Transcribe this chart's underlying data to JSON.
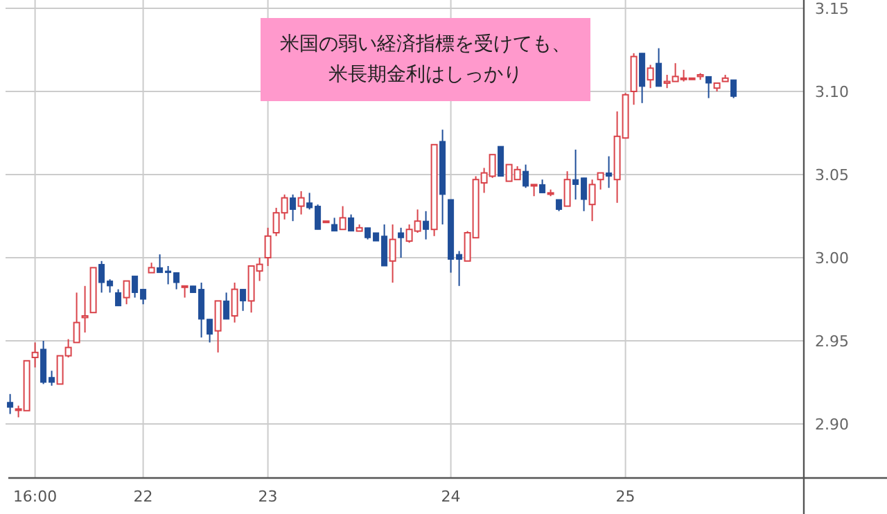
{
  "chart_data": {
    "type": "candlestick",
    "annotations": [
      "米国の弱い経済指標を受けても、",
      "米長期金利はしっかり"
    ],
    "categories": [
      null,
      null,
      null,
      "16:00",
      null,
      null,
      null,
      null,
      null,
      null,
      null,
      null,
      null,
      null,
      null,
      null,
      "22",
      null,
      null,
      null,
      null,
      null,
      null,
      null,
      null,
      null,
      null,
      null,
      null,
      null,
      null,
      "23",
      null,
      null,
      null,
      null,
      null,
      null,
      null,
      null,
      null,
      null,
      null,
      null,
      null,
      null,
      null,
      null,
      null,
      null,
      null,
      null,
      null,
      "24",
      null,
      null,
      null,
      null,
      null,
      null,
      null,
      null,
      null,
      null,
      null,
      null,
      null,
      null,
      null,
      null,
      null,
      null,
      null,
      null,
      "25",
      null,
      null,
      null,
      null,
      null,
      null,
      null,
      null,
      null,
      null,
      null,
      null,
      null
    ],
    "ohlc": [
      [
        2.913,
        2.918,
        2.906,
        2.91
      ],
      [
        2.909,
        2.911,
        2.904,
        2.909
      ],
      [
        2.908,
        2.938,
        2.908,
        2.938
      ],
      [
        2.94,
        2.949,
        2.934,
        2.943
      ],
      [
        2.945,
        2.95,
        2.924,
        2.925
      ],
      [
        2.928,
        2.932,
        2.923,
        2.925
      ],
      [
        2.924,
        2.941,
        2.924,
        2.941
      ],
      [
        2.941,
        2.951,
        2.94,
        2.946
      ],
      [
        2.949,
        2.979,
        2.949,
        2.961
      ],
      [
        2.964,
        2.983,
        2.955,
        2.965
      ],
      [
        2.967,
        2.994,
        2.967,
        2.994
      ],
      [
        2.996,
        2.998,
        2.979,
        2.985
      ],
      [
        2.986,
        2.987,
        2.979,
        2.983
      ],
      [
        2.979,
        2.981,
        2.971,
        2.971
      ],
      [
        2.976,
        2.986,
        2.972,
        2.986
      ],
      [
        2.989,
        2.989,
        2.976,
        2.979
      ],
      [
        2.981,
        2.981,
        2.972,
        2.975
      ],
      [
        2.991,
        2.997,
        2.991,
        2.994
      ],
      [
        2.994,
        3.002,
        2.991,
        2.991
      ],
      [
        2.992,
        2.995,
        2.984,
        2.991
      ],
      [
        2.991,
        2.991,
        2.981,
        2.985
      ],
      [
        2.983,
        2.983,
        2.976,
        2.983
      ],
      [
        2.983,
        2.983,
        2.979,
        2.979
      ],
      [
        2.981,
        2.985,
        2.952,
        2.963
      ],
      [
        2.963,
        2.963,
        2.949,
        2.954
      ],
      [
        2.956,
        2.974,
        2.943,
        2.974
      ],
      [
        2.974,
        2.979,
        2.963,
        2.963
      ],
      [
        2.965,
        2.985,
        2.961,
        2.981
      ],
      [
        2.981,
        2.981,
        2.968,
        2.974
      ],
      [
        2.974,
        2.995,
        2.967,
        2.995
      ],
      [
        2.992,
        3.0,
        2.986,
        2.996
      ],
      [
        3.0,
        3.018,
        2.995,
        3.013
      ],
      [
        3.015,
        3.03,
        3.013,
        3.027
      ],
      [
        3.027,
        3.038,
        3.023,
        3.036
      ],
      [
        3.036,
        3.038,
        3.022,
        3.029
      ],
      [
        3.031,
        3.04,
        3.026,
        3.036
      ],
      [
        3.033,
        3.039,
        3.029,
        3.03
      ],
      [
        3.031,
        3.032,
        3.017,
        3.017
      ],
      [
        3.022,
        3.022,
        3.022,
        3.022
      ],
      [
        3.02,
        3.024,
        3.016,
        3.016
      ],
      [
        3.017,
        3.031,
        3.017,
        3.024
      ],
      [
        3.024,
        3.026,
        3.016,
        3.016
      ],
      [
        3.016,
        3.02,
        3.016,
        3.018
      ],
      [
        3.018,
        3.018,
        3.011,
        3.012
      ],
      [
        3.015,
        3.015,
        3.01,
        3.01
      ],
      [
        3.013,
        3.02,
        2.995,
        2.995
      ],
      [
        2.998,
        3.02,
        2.985,
        3.011
      ],
      [
        3.015,
        3.018,
        3.0,
        3.012
      ],
      [
        3.01,
        3.02,
        3.009,
        3.017
      ],
      [
        3.016,
        3.029,
        3.015,
        3.022
      ],
      [
        3.022,
        3.028,
        3.011,
        3.017
      ],
      [
        3.017,
        3.068,
        3.013,
        3.068
      ],
      [
        3.07,
        3.077,
        3.02,
        3.038
      ],
      [
        3.035,
        3.035,
        2.991,
        2.999
      ],
      [
        3.002,
        3.004,
        2.983,
        2.999
      ],
      [
        2.998,
        3.016,
        2.998,
        3.015
      ],
      [
        3.012,
        3.049,
        3.012,
        3.047
      ],
      [
        3.045,
        3.054,
        3.039,
        3.051
      ],
      [
        3.049,
        3.062,
        3.048,
        3.062
      ],
      [
        3.067,
        3.067,
        3.049,
        3.049
      ],
      [
        3.046,
        3.056,
        3.046,
        3.056
      ],
      [
        3.047,
        3.055,
        3.047,
        3.053
      ],
      [
        3.052,
        3.056,
        3.042,
        3.043
      ],
      [
        3.044,
        3.044,
        3.037,
        3.044
      ],
      [
        3.044,
        3.047,
        3.039,
        3.039
      ],
      [
        3.039,
        3.041,
        3.037,
        3.039
      ],
      [
        3.035,
        3.035,
        3.028,
        3.029
      ],
      [
        3.031,
        3.052,
        3.031,
        3.047
      ],
      [
        3.047,
        3.065,
        3.035,
        3.044
      ],
      [
        3.048,
        3.048,
        3.028,
        3.035
      ],
      [
        3.032,
        3.047,
        3.022,
        3.044
      ],
      [
        3.047,
        3.051,
        3.041,
        3.051
      ],
      [
        3.051,
        3.061,
        3.042,
        3.049
      ],
      [
        3.047,
        3.088,
        3.033,
        3.073
      ],
      [
        3.072,
        3.099,
        3.072,
        3.098
      ],
      [
        3.1,
        3.123,
        3.092,
        3.121
      ],
      [
        3.123,
        3.123,
        3.093,
        3.103
      ],
      [
        3.107,
        3.116,
        3.102,
        3.114
      ],
      [
        3.117,
        3.126,
        3.103,
        3.103
      ],
      [
        3.105,
        3.11,
        3.102,
        3.106
      ],
      [
        3.106,
        3.117,
        3.106,
        3.109
      ],
      [
        3.108,
        3.113,
        3.106,
        3.108
      ],
      [
        3.108,
        3.108,
        3.108,
        3.108
      ],
      [
        3.109,
        3.111,
        3.107,
        3.11
      ],
      [
        3.109,
        3.109,
        3.096,
        3.105
      ],
      [
        3.102,
        3.105,
        3.1,
        3.105
      ],
      [
        3.106,
        3.11,
        3.106,
        3.108
      ],
      [
        3.107,
        3.107,
        3.096,
        3.097
      ]
    ],
    "colors": [
      "#1f4e99",
      "#d9434a",
      "#d9434a",
      "#d9434a",
      "#1f4e99",
      "#1f4e99",
      "#d9434a",
      "#d9434a",
      "#d9434a",
      "#d9434a",
      "#d9434a",
      "#1f4e99",
      "#1f4e99",
      "#1f4e99",
      "#d9434a",
      "#1f4e99",
      "#1f4e99",
      "#d9434a",
      "#1f4e99",
      "#1f4e99",
      "#1f4e99",
      "#d9434a",
      "#1f4e99",
      "#1f4e99",
      "#1f4e99",
      "#d9434a",
      "#1f4e99",
      "#d9434a",
      "#1f4e99",
      "#d9434a",
      "#d9434a",
      "#d9434a",
      "#d9434a",
      "#d9434a",
      "#1f4e99",
      "#d9434a",
      "#1f4e99",
      "#1f4e99",
      "#d9434a",
      "#1f4e99",
      "#d9434a",
      "#1f4e99",
      "#d9434a",
      "#1f4e99",
      "#1f4e99",
      "#1f4e99",
      "#d9434a",
      "#1f4e99",
      "#d9434a",
      "#d9434a",
      "#1f4e99",
      "#d9434a",
      "#1f4e99",
      "#1f4e99",
      "#1f4e99",
      "#d9434a",
      "#d9434a",
      "#d9434a",
      "#d9434a",
      "#1f4e99",
      "#d9434a",
      "#d9434a",
      "#1f4e99",
      "#d9434a",
      "#1f4e99",
      "#d9434a",
      "#1f4e99",
      "#d9434a",
      "#1f4e99",
      "#1f4e99",
      "#d9434a",
      "#d9434a",
      "#1f4e99",
      "#d9434a",
      "#d9434a",
      "#d9434a",
      "#1f4e99",
      "#d9434a",
      "#1f4e99",
      "#d9434a",
      "#d9434a",
      "#d9434a",
      "#d9434a",
      "#d9434a",
      "#1f4e99",
      "#d9434a",
      "#d9434a",
      "#1f4e99"
    ],
    "ylim": [
      2.8675,
      3.155
    ],
    "yticks": [
      {
        "value": 2.9,
        "label": "2.90"
      },
      2.95,
      {
        "value": 3.0,
        "label": "3.00"
      },
      3.05,
      {
        "value": 3.1,
        "label": "3.10"
      },
      3.15
    ],
    "grid": true
  }
}
